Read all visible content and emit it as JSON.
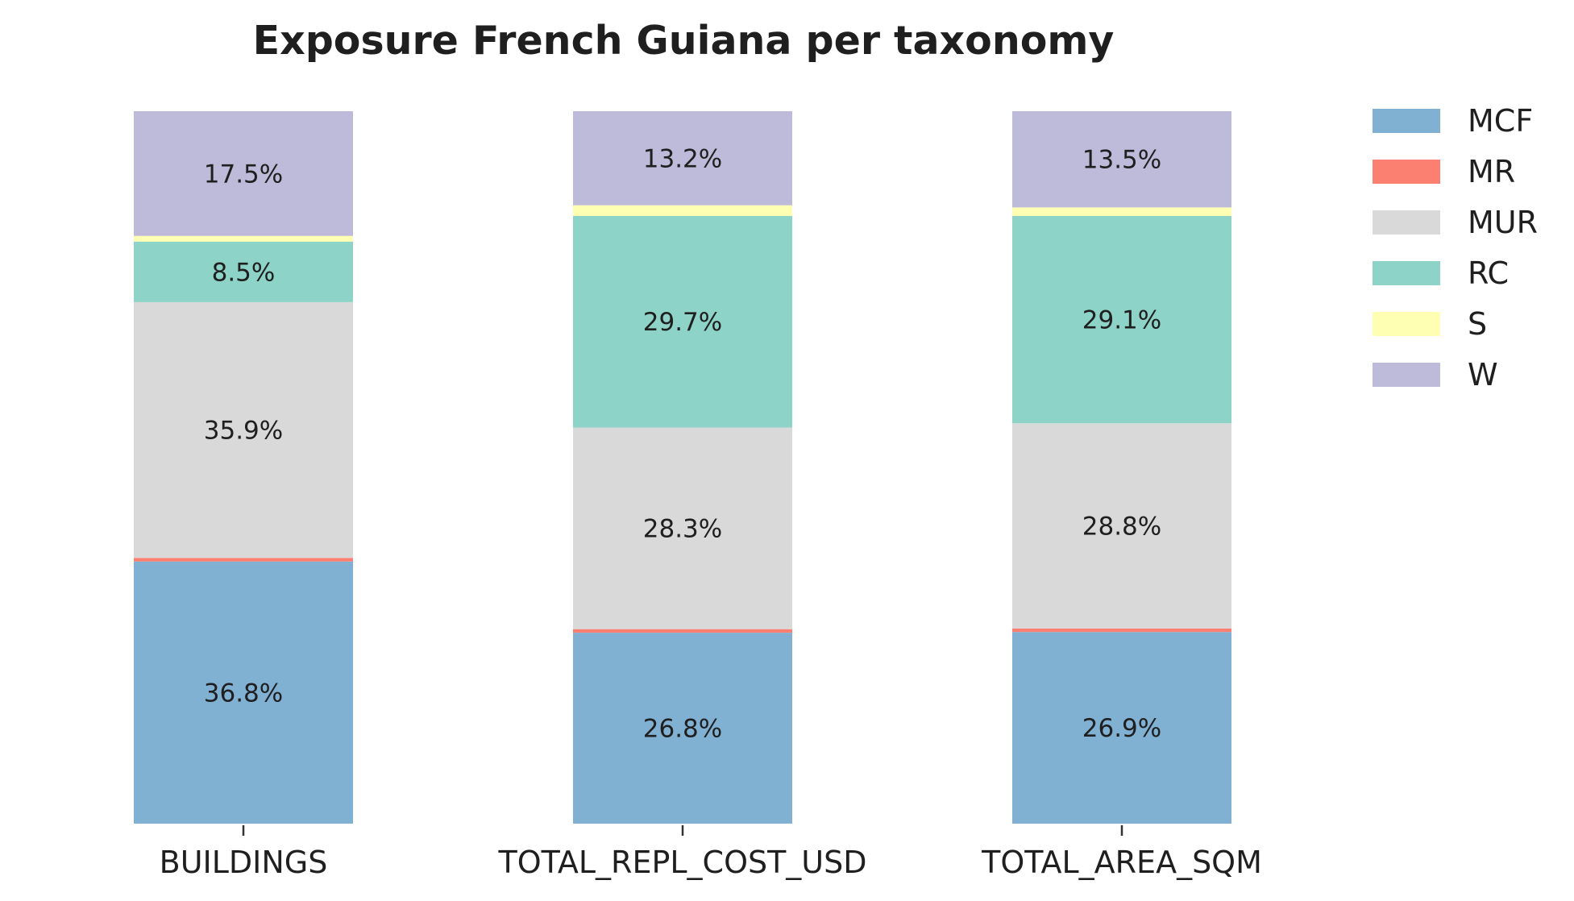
{
  "chart_data": {
    "type": "bar",
    "stacked": true,
    "title": "Exposure French Guiana per taxonomy",
    "xlabel": "",
    "ylabel": "",
    "ylim": [
      0,
      100
    ],
    "grid": false,
    "legend_position": "top-right",
    "categories": [
      "BUILDINGS",
      "TOTAL_REPL_COST_USD",
      "TOTAL_AREA_SQM"
    ],
    "series": [
      {
        "name": "MCF",
        "color": "#80b1d3",
        "values": [
          36.8,
          26.8,
          26.9
        ],
        "labels": [
          "36.8%",
          "26.8%",
          "26.9%"
        ]
      },
      {
        "name": "MR",
        "color": "#fb8072",
        "values": [
          0.5,
          0.5,
          0.5
        ],
        "labels": [
          "",
          "",
          ""
        ]
      },
      {
        "name": "MUR",
        "color": "#d9d9d9",
        "values": [
          35.9,
          28.3,
          28.8
        ],
        "labels": [
          "35.9%",
          "28.3%",
          "28.8%"
        ]
      },
      {
        "name": "RC",
        "color": "#8dd3c7",
        "values": [
          8.5,
          29.7,
          29.1
        ],
        "labels": [
          "8.5%",
          "29.7%",
          "29.1%"
        ]
      },
      {
        "name": "S",
        "color": "#ffffb3",
        "values": [
          0.8,
          1.5,
          1.2
        ],
        "labels": [
          "",
          "",
          ""
        ]
      },
      {
        "name": "W",
        "color": "#bebada",
        "values": [
          17.5,
          13.2,
          13.5
        ],
        "labels": [
          "17.5%",
          "13.2%",
          "13.5%"
        ]
      }
    ]
  }
}
